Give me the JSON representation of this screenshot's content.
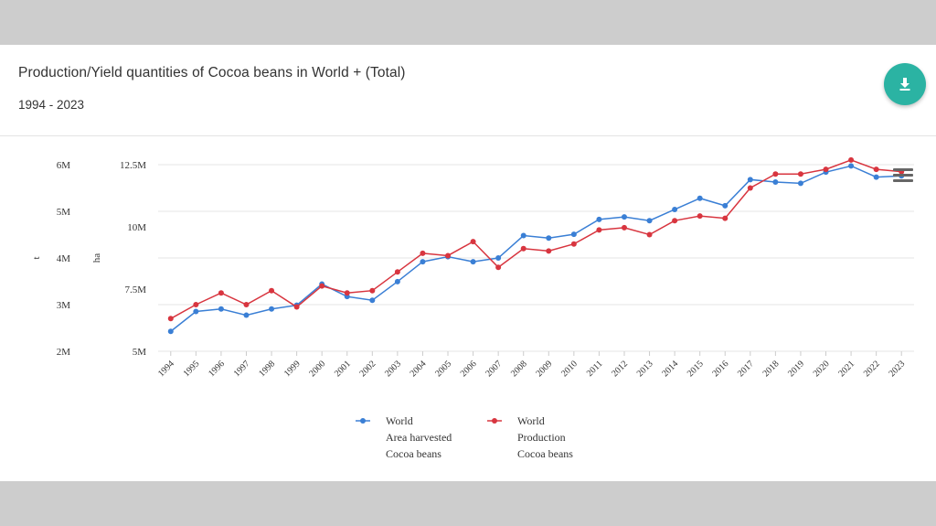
{
  "header": {
    "title": "Production/Yield quantities of Cocoa beans in World + (Total)",
    "subtitle": "1994 - 2023",
    "download_icon": "download-icon",
    "menu_icon": "hamburger-menu-icon"
  },
  "colors": {
    "accent": "#2bb3a3",
    "area_harvested": "#3a7fd5",
    "production": "#d8353f",
    "grid": "#e6e6e6"
  },
  "chart_data": {
    "type": "line",
    "x": [
      "1994",
      "1995",
      "1996",
      "1997",
      "1998",
      "1999",
      "2000",
      "2001",
      "2002",
      "2003",
      "2004",
      "2005",
      "2006",
      "2007",
      "2008",
      "2009",
      "2010",
      "2011",
      "2012",
      "2013",
      "2014",
      "2015",
      "2016",
      "2017",
      "2018",
      "2019",
      "2020",
      "2021",
      "2022",
      "2023"
    ],
    "left_axis": {
      "title": "t",
      "ticks": [
        "2M",
        "3M",
        "4M",
        "5M",
        "6M"
      ],
      "range": [
        2000000,
        6000000
      ]
    },
    "right_axis": {
      "title": "ha",
      "ticks": [
        "5M",
        "7.5M",
        "10M",
        "12.5M"
      ],
      "range": [
        5000000,
        12500000
      ]
    },
    "series": [
      {
        "name": "World Area harvested Cocoa beans",
        "legend_lines": [
          "World",
          "Area harvested",
          "Cocoa beans"
        ],
        "axis": "right",
        "values": [
          5800000,
          6600000,
          6700000,
          6450000,
          6700000,
          6850000,
          7700000,
          7200000,
          7050000,
          7800000,
          8600000,
          8800000,
          8600000,
          8750000,
          9650000,
          9550000,
          9700000,
          10300000,
          10400000,
          10250000,
          10700000,
          11150000,
          10850000,
          11900000,
          11800000,
          11750000,
          12200000,
          12450000,
          12000000,
          12050000
        ]
      },
      {
        "name": "World Production Cocoa beans",
        "legend_lines": [
          "World",
          "Production",
          "Cocoa beans"
        ],
        "axis": "left",
        "values": [
          2700000,
          3000000,
          3250000,
          3000000,
          3300000,
          2950000,
          3400000,
          3250000,
          3300000,
          3700000,
          4100000,
          4050000,
          4350000,
          3800000,
          4200000,
          4150000,
          4300000,
          4600000,
          4650000,
          4500000,
          4800000,
          4900000,
          4850000,
          5500000,
          5800000,
          5800000,
          5900000,
          6100000,
          5900000,
          5850000
        ]
      }
    ],
    "grid": true,
    "legend_position": "bottom"
  }
}
